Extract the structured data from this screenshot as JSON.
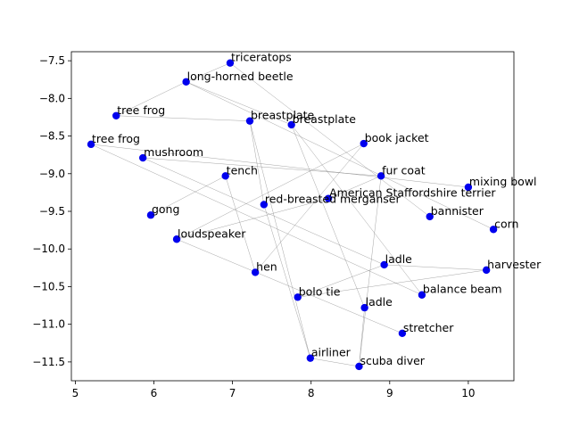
{
  "chart_data": {
    "type": "scatter",
    "title": "",
    "xlabel": "",
    "ylabel": "",
    "xlim": [
      4.95,
      10.58
    ],
    "ylim": [
      -11.75,
      -7.38
    ],
    "grid": false,
    "point_color": "#0000ee",
    "edge_color": "#7f7f7f",
    "x_ticks": [
      {
        "value": 5,
        "label": "5"
      },
      {
        "value": 6,
        "label": "6"
      },
      {
        "value": 7,
        "label": "7"
      },
      {
        "value": 8,
        "label": "8"
      },
      {
        "value": 9,
        "label": "9"
      },
      {
        "value": 10,
        "label": "10"
      }
    ],
    "y_ticks": [
      {
        "value": -7.5,
        "label": "−7.5"
      },
      {
        "value": -8.0,
        "label": "−8.0"
      },
      {
        "value": -8.5,
        "label": "−8.5"
      },
      {
        "value": -9.0,
        "label": "−9.0"
      },
      {
        "value": -9.5,
        "label": "−9.5"
      },
      {
        "value": -10.0,
        "label": "−10.0"
      },
      {
        "value": -10.5,
        "label": "−10.5"
      },
      {
        "value": -11.0,
        "label": "−11.0"
      },
      {
        "value": -11.5,
        "label": "−11.5"
      }
    ],
    "points": [
      {
        "label": "triceratops",
        "x": 6.97,
        "y": -7.53
      },
      {
        "label": "long-horned beetle",
        "x": 6.41,
        "y": -7.78
      },
      {
        "label": "tree frog",
        "x": 5.52,
        "y": -8.23
      },
      {
        "label": "breastplate",
        "x": 7.22,
        "y": -8.3
      },
      {
        "label": "breastplate",
        "x": 7.75,
        "y": -8.35
      },
      {
        "label": "tree frog",
        "x": 5.2,
        "y": -8.61
      },
      {
        "label": "book jacket",
        "x": 8.67,
        "y": -8.6
      },
      {
        "label": "mushroom",
        "x": 5.86,
        "y": -8.79
      },
      {
        "label": "tench",
        "x": 6.91,
        "y": -9.03
      },
      {
        "label": "fur coat",
        "x": 8.89,
        "y": -9.03
      },
      {
        "label": "mixing bowl",
        "x": 10.0,
        "y": -9.18
      },
      {
        "label": "American Staffordshire terrier",
        "x": 8.22,
        "y": -9.33
      },
      {
        "label": "red-breasted merganser",
        "x": 7.4,
        "y": -9.41
      },
      {
        "label": "gong",
        "x": 5.96,
        "y": -9.55
      },
      {
        "label": "bannister",
        "x": 9.51,
        "y": -9.57
      },
      {
        "label": "corn",
        "x": 10.32,
        "y": -9.74
      },
      {
        "label": "loudspeaker",
        "x": 6.29,
        "y": -9.87
      },
      {
        "label": "ladle",
        "x": 8.93,
        "y": -10.21
      },
      {
        "label": "harvester",
        "x": 10.23,
        "y": -10.28
      },
      {
        "label": "hen",
        "x": 7.29,
        "y": -10.31
      },
      {
        "label": "balance beam",
        "x": 9.41,
        "y": -10.61
      },
      {
        "label": "bolo tie",
        "x": 7.83,
        "y": -10.64
      },
      {
        "label": "ladle",
        "x": 8.68,
        "y": -10.78
      },
      {
        "label": "stretcher",
        "x": 9.16,
        "y": -11.12
      },
      {
        "label": "airliner",
        "x": 7.99,
        "y": -11.45
      },
      {
        "label": "scuba diver",
        "x": 8.61,
        "y": -11.56
      }
    ],
    "edges": [
      [
        0,
        1
      ],
      [
        0,
        14
      ],
      [
        1,
        2
      ],
      [
        1,
        4
      ],
      [
        1,
        15
      ],
      [
        2,
        3
      ],
      [
        3,
        12
      ],
      [
        3,
        24
      ],
      [
        4,
        22
      ],
      [
        4,
        20
      ],
      [
        5,
        20
      ],
      [
        5,
        10
      ],
      [
        7,
        9
      ],
      [
        7,
        17
      ],
      [
        8,
        19
      ],
      [
        8,
        13
      ],
      [
        6,
        16
      ],
      [
        6,
        19
      ],
      [
        9,
        25
      ],
      [
        11,
        16
      ],
      [
        16,
        23
      ],
      [
        17,
        21
      ],
      [
        18,
        21
      ],
      [
        17,
        18
      ],
      [
        12,
        24
      ],
      [
        22,
        25
      ],
      [
        24,
        25
      ],
      [
        11,
        9
      ]
    ]
  }
}
